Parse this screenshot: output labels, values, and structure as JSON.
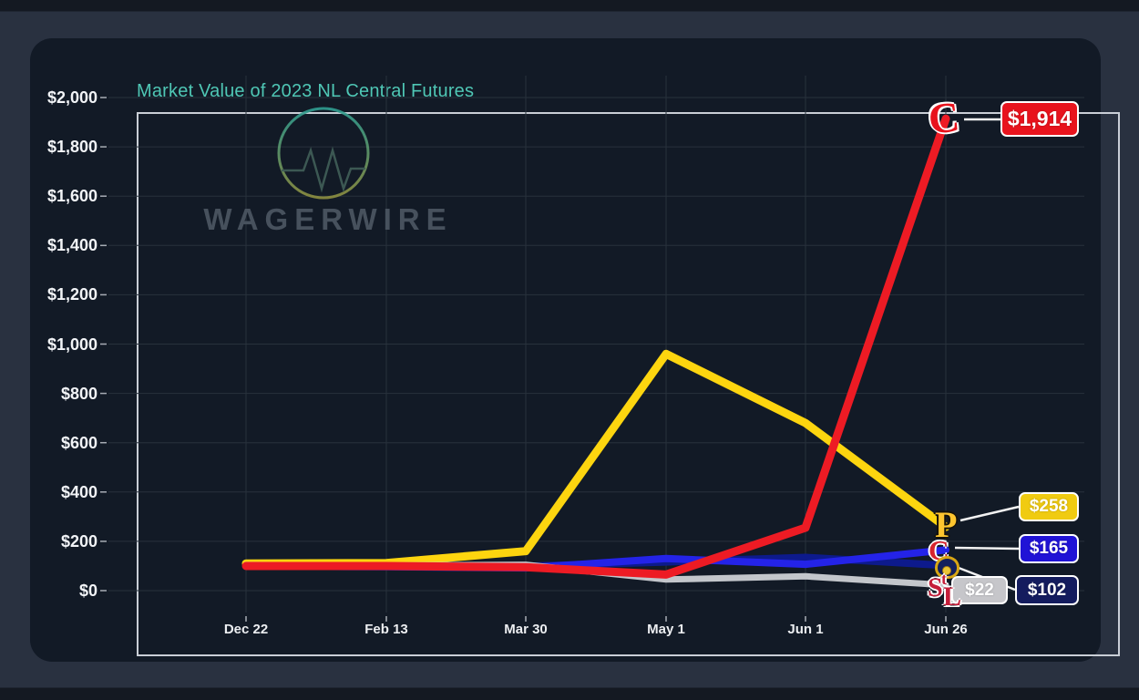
{
  "title": "Market Value of 2023 NL Central Futures",
  "watermark": {
    "brand": "WAGERWIRE"
  },
  "colors": {
    "outer_background": "#293140",
    "card_background": "#121a26",
    "title_teal": "#4fc7b5",
    "plot_border": "#c9ced6",
    "gridline": "#28313c",
    "axis_text": "#f2f4f7",
    "connector_white": "#f2f2f2"
  },
  "logos": {
    "reds_letter": "C",
    "pirates_letter": "P",
    "cubs_letter": "C",
    "cardinals_s": "S",
    "cardinals_t": "t",
    "cardinals_l": "L"
  },
  "chart_data": {
    "type": "line",
    "title": "Market Value of 2023 NL Central Futures",
    "xlabel": "",
    "ylabel": "",
    "grid": true,
    "legend_position": "none",
    "ylim": [
      0,
      2000
    ],
    "y_tick_labels": [
      "$0",
      "$200",
      "$400",
      "$600",
      "$800",
      "$1,000",
      "$1,200",
      "$1,400",
      "$1,600",
      "$1,800",
      "$2,000"
    ],
    "y_tick_values": [
      0,
      200,
      400,
      600,
      800,
      1000,
      1200,
      1400,
      1600,
      1800,
      2000
    ],
    "categories": [
      "Dec 22",
      "Feb 13",
      "Mar 30",
      "May 1",
      "Jun 1",
      "Jun 26"
    ],
    "series": [
      {
        "name": "Cincinnati Reds",
        "color": "#ed1b24",
        "final_label": "$1,914",
        "values": [
          100,
          100,
          95,
          65,
          255,
          1914
        ]
      },
      {
        "name": "Pittsburgh Pirates",
        "color": "#fdd50f",
        "final_label": "$258",
        "values": [
          110,
          112,
          160,
          960,
          680,
          258
        ]
      },
      {
        "name": "Chicago Cubs",
        "color": "#2423e8",
        "final_label": "$165",
        "values": [
          100,
          97,
          92,
          130,
          107,
          165
        ]
      },
      {
        "name": "Milwaukee Brewers",
        "color": "#0d1a8c",
        "final_label": "$102",
        "values": [
          103,
          101,
          99,
          116,
          135,
          102
        ]
      },
      {
        "name": "St. Louis Cardinals",
        "color": "#c3c6cb",
        "final_label": "$22",
        "values": [
          104,
          102,
          105,
          45,
          58,
          22
        ]
      }
    ]
  }
}
